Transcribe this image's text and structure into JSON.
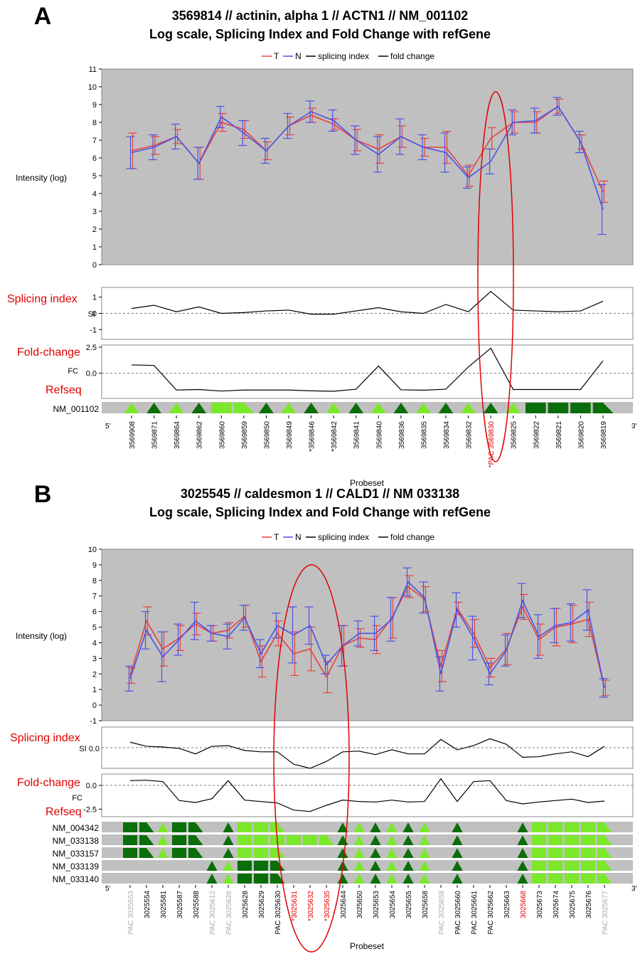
{
  "chart_data": [
    {
      "type": "line",
      "panel_label": "A",
      "title": "3569814 // actinin, alpha 1 // ACTN1 // NM_001102",
      "subtitle": "Log scale, Splicing Index and Fold Change with refGene",
      "legend": [
        "T",
        "N",
        "splicing index",
        "fold change"
      ],
      "ylabel": "Intensity (log)",
      "xlabel": "Probeset",
      "ylim": [
        0,
        11
      ],
      "yticks": [
        "0",
        "1",
        "2",
        "3",
        "4",
        "5",
        "6",
        "7",
        "8",
        "9",
        "10",
        "11"
      ],
      "categories": [
        "3569908",
        "3569871",
        "3569864",
        "3569862",
        "3569860",
        "3569859",
        "3569850",
        "3569849",
        "*3569846",
        "*3569842",
        "3569841",
        "3569840",
        "3569836",
        "3569835",
        "3569834",
        "3569832",
        "*PAC 3569830",
        "3569825",
        "3569822",
        "3569821",
        "3569820",
        "3569819"
      ],
      "category_colors": [
        "#000000",
        "#000000",
        "#000000",
        "#000000",
        "#000000",
        "#000000",
        "#000000",
        "#000000",
        "#000000",
        "#000000",
        "#000000",
        "#000000",
        "#000000",
        "#000000",
        "#000000",
        "#000000",
        "#e00000",
        "#000000",
        "#000000",
        "#000000",
        "#000000",
        "#000000"
      ],
      "series": [
        {
          "name": "T",
          "color": "#e8413c",
          "values": [
            6.4,
            6.7,
            7.2,
            5.7,
            8.0,
            7.6,
            6.4,
            7.8,
            8.4,
            7.9,
            7.0,
            6.5,
            7.2,
            6.6,
            6.6,
            5.0,
            7.1,
            8.0,
            8.0,
            8.9,
            6.9,
            4.1
          ],
          "err": [
            1.0,
            0.5,
            0.4,
            0.9,
            0.5,
            0.5,
            0.5,
            0.5,
            0.4,
            0.3,
            0.6,
            0.8,
            0.6,
            0.5,
            0.9,
            0.6,
            0.6,
            0.6,
            0.6,
            0.4,
            0.4,
            0.6
          ]
        },
        {
          "name": "N",
          "color": "#4a52e8",
          "values": [
            6.3,
            6.6,
            7.2,
            5.7,
            8.3,
            7.4,
            6.4,
            7.8,
            8.6,
            8.1,
            7.0,
            6.2,
            7.2,
            6.6,
            6.3,
            4.9,
            5.8,
            8.0,
            8.1,
            8.9,
            6.9,
            3.1
          ],
          "err": [
            0.9,
            0.7,
            0.7,
            0.9,
            0.6,
            0.7,
            0.7,
            0.7,
            0.6,
            0.6,
            0.8,
            1.0,
            1.0,
            0.7,
            1.1,
            0.6,
            0.7,
            0.7,
            0.7,
            0.5,
            0.6,
            1.4
          ]
        }
      ],
      "si": {
        "title": "Splicing index",
        "label": "SI",
        "ticks": [
          "1",
          "0",
          "-1"
        ],
        "ylim": [
          -1.6,
          1.6
        ],
        "values": [
          0.3,
          0.5,
          0.1,
          0.4,
          0.0,
          0.05,
          0.15,
          0.2,
          -0.05,
          -0.05,
          0.15,
          0.35,
          0.1,
          0.0,
          0.55,
          0.1,
          1.35,
          0.2,
          0.15,
          0.1,
          0.15,
          0.75
        ]
      },
      "fc": {
        "title": "Fold-change",
        "label": "FC",
        "ticks": [
          "2.5",
          "0.0"
        ],
        "ylim": [
          -2.4,
          2.7
        ],
        "values": [
          0.8,
          0.75,
          -1.6,
          -1.55,
          -1.7,
          -1.6,
          -1.6,
          -1.6,
          -1.68,
          -1.72,
          -1.52,
          0.7,
          -1.58,
          -1.62,
          -1.52,
          0.6,
          2.4,
          -1.55,
          -1.55,
          -1.55,
          -1.55,
          1.2
        ]
      },
      "refseq": {
        "title": "Refseq",
        "rows": [
          {
            "name": "NM_001102",
            "marks": [
              "lt",
              "dt",
              "lt",
              "dt",
              "lr",
              "lq",
              "dt",
              "lt",
              "dt",
              "lt",
              "dt",
              "lt",
              "dt",
              "lt",
              "dt",
              "lt",
              "dt",
              "lt",
              "dr",
              "dr",
              "dr",
              "dq"
            ]
          }
        ]
      },
      "end_labels": [
        "5'",
        "3'"
      ]
    },
    {
      "type": "line",
      "panel_label": "B",
      "title": "3025545 // caldesmon 1 // CALD1 // NM  033138",
      "subtitle": "Log scale, Splicing Index and Fold Change with refGene",
      "legend": [
        "T",
        "N",
        "splicing index",
        "fold change"
      ],
      "ylabel": "Intensity (log)",
      "xlabel": "Probeset",
      "ylim": [
        -1,
        10
      ],
      "yticks": [
        "-1",
        "0",
        "1",
        "2",
        "3",
        "4",
        "5",
        "6",
        "7",
        "8",
        "9",
        "10"
      ],
      "categories": [
        "PAC 3025553",
        "3025554",
        "3025581",
        "3025587",
        "3025588",
        "PAC 3025612",
        "PAC 3025626",
        "3025628",
        "3025629",
        "PAC 3025630",
        "*3025631",
        "*3025632",
        "*3025635",
        "3025644",
        "3025650",
        "3025653",
        "3025654",
        "3025655",
        "3025658",
        "PAC 3025659",
        "PAC 3025660",
        "PAC 3025661",
        "PAC 3025662",
        "3025663",
        "3025668",
        "3025673",
        "3025674",
        "3025675",
        "3025676",
        "PAC 3025677"
      ],
      "category_colors": [
        "#aaaaaa",
        "#000000",
        "#000000",
        "#000000",
        "#000000",
        "#aaaaaa",
        "#aaaaaa",
        "#000000",
        "#000000",
        "#000000",
        "#e00000",
        "#e00000",
        "#e00000",
        "#000000",
        "#000000",
        "#000000",
        "#000000",
        "#000000",
        "#000000",
        "#aaaaaa",
        "#000000",
        "#000000",
        "#000000",
        "#000000",
        "#e00000",
        "#000000",
        "#000000",
        "#000000",
        "#000000",
        "#aaaaaa"
      ],
      "series": [
        {
          "name": "T",
          "color": "#e8413c",
          "values": [
            1.9,
            5.4,
            3.6,
            4.3,
            5.2,
            4.6,
            4.8,
            5.7,
            2.8,
            4.6,
            3.3,
            3.6,
            1.8,
            3.8,
            4.3,
            4.2,
            5.6,
            7.6,
            6.8,
            2.5,
            6.2,
            4.6,
            2.4,
            3.6,
            6.3,
            4.2,
            5.0,
            5.2,
            5.5,
            1.1
          ],
          "err": [
            0.5,
            0.9,
            1.1,
            0.8,
            0.7,
            0.5,
            0.5,
            0.7,
            1.0,
            0.8,
            1.4,
            1.4,
            1.0,
            1.3,
            0.6,
            0.9,
            1.3,
            0.7,
            0.8,
            1.0,
            0.4,
            0.9,
            0.6,
            1.0,
            0.8,
            1.0,
            1.2,
            1.2,
            1.1,
            0.5
          ]
        },
        {
          "name": "N",
          "color": "#4a52e8",
          "values": [
            1.7,
            4.8,
            3.1,
            4.2,
            5.4,
            4.6,
            4.4,
            5.6,
            3.3,
            5.1,
            4.5,
            5.1,
            2.6,
            3.8,
            4.6,
            4.6,
            5.5,
            7.9,
            6.9,
            2.0,
            6.1,
            4.3,
            2.0,
            3.5,
            6.7,
            4.4,
            5.1,
            5.3,
            6.1,
            1.1
          ],
          "err": [
            0.8,
            1.2,
            1.6,
            1.0,
            1.2,
            0.5,
            0.8,
            0.8,
            0.9,
            0.8,
            1.8,
            1.2,
            0.6,
            1.3,
            0.8,
            1.1,
            1.4,
            0.9,
            1.0,
            1.1,
            1.1,
            1.4,
            0.7,
            1.0,
            1.1,
            1.4,
            1.1,
            1.2,
            1.3,
            0.6
          ]
        }
      ],
      "si": {
        "title": "Splicing index",
        "label": "SI 0.0",
        "ticks": [],
        "ylim": [
          -1.5,
          1.5
        ],
        "values": [
          0.4,
          0.1,
          0.05,
          -0.05,
          -0.45,
          0.1,
          0.15,
          -0.2,
          -0.3,
          -0.3,
          -1.2,
          -1.5,
          -1.0,
          -0.3,
          -0.25,
          -0.5,
          -0.15,
          -0.45,
          -0.45,
          0.6,
          -0.15,
          0.15,
          0.65,
          0.25,
          -0.7,
          -0.65,
          -0.45,
          -0.3,
          -0.65,
          0.1
        ]
      },
      "fc": {
        "title": "Fold-change",
        "label": "FC",
        "ticks": [
          "0.0",
          "-2.5"
        ],
        "ylim": [
          -3.3,
          1.2
        ],
        "values": [
          0.5,
          0.55,
          0.4,
          -1.6,
          -1.8,
          -1.4,
          0.5,
          -1.55,
          -1.7,
          -1.85,
          -2.6,
          -2.75,
          -2.1,
          -1.55,
          -1.7,
          -1.75,
          -1.55,
          -1.75,
          -1.7,
          0.7,
          -1.7,
          0.4,
          0.5,
          -1.6,
          -1.95,
          -1.75,
          -1.6,
          -1.45,
          -1.8,
          -1.65
        ]
      },
      "refseq": {
        "title": "Refseq",
        "rows": [
          {
            "name": "NM_004342",
            "marks": [
              "dr",
              "dq",
              "lt",
              "dr",
              "dq",
              "",
              "dt",
              "lr",
              "lr",
              "lq",
              "",
              "",
              "",
              "dt",
              "lt",
              "dt",
              "lt",
              "dt",
              "lt",
              "",
              "dt",
              "",
              "",
              "",
              "dt",
              "lr",
              "lr",
              "lr",
              "lr",
              "lq"
            ]
          },
          {
            "name": "NM_033138",
            "marks": [
              "dr",
              "dq",
              "lt",
              "dr",
              "dq",
              "",
              "dt",
              "lr",
              "lr",
              "lr",
              "lr",
              "lr",
              "lq",
              "dt",
              "lt",
              "dt",
              "lt",
              "dt",
              "lt",
              "",
              "dt",
              "",
              "",
              "",
              "dt",
              "lr",
              "lr",
              "lr",
              "lr",
              "lq"
            ]
          },
          {
            "name": "NM_033157",
            "marks": [
              "dr",
              "dq",
              "lt",
              "dr",
              "dq",
              "",
              "dt",
              "lr",
              "lr",
              "lq",
              "",
              "",
              "",
              "dt",
              "lt",
              "dt",
              "lt",
              "dt",
              "lt",
              "",
              "dt",
              "",
              "",
              "",
              "dt",
              "lr",
              "lr",
              "lr",
              "lr",
              "lq"
            ]
          },
          {
            "name": "NM_033139",
            "marks": [
              "",
              "",
              "",
              "",
              "",
              "dt",
              "lt",
              "dr",
              "dr",
              "dq",
              "",
              "",
              "",
              "dt",
              "lt",
              "dt",
              "lt",
              "dt",
              "lt",
              "",
              "dt",
              "",
              "",
              "",
              "dt",
              "lr",
              "lr",
              "lr",
              "lr",
              "lq"
            ]
          },
          {
            "name": "NM_033140",
            "marks": [
              "",
              "",
              "",
              "",
              "",
              "dt",
              "lt",
              "dr",
              "dr",
              "dq",
              "",
              "",
              "",
              "dt",
              "lt",
              "dt",
              "lt",
              "dt",
              "lt",
              "",
              "dt",
              "",
              "",
              "",
              "dt",
              "lr",
              "lr",
              "lr",
              "lr",
              "lq"
            ]
          }
        ]
      },
      "end_labels": [
        "5'",
        "3'"
      ]
    }
  ],
  "colors": {
    "plot_bg": "#c0c0c0",
    "dark_green": "#0a6e0a",
    "light_green": "#7be82a",
    "highlight": "#e00000"
  }
}
